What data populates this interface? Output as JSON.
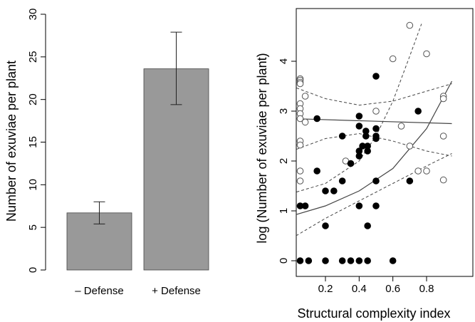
{
  "chart_data": [
    {
      "type": "bar",
      "categories": [
        "– Defense",
        "+ Defense"
      ],
      "values": [
        6.7,
        23.6
      ],
      "error_bars": [
        [
          5.4,
          8.0
        ],
        [
          19.4,
          27.9
        ]
      ],
      "title": "",
      "xlabel": "",
      "ylabel": "Number of exuviae per plant",
      "ylim": [
        0,
        30
      ],
      "yticks": [
        0,
        5,
        10,
        15,
        20,
        25,
        30
      ],
      "bar_color": "#999999",
      "grid": false
    },
    {
      "type": "scatter",
      "title": "",
      "xlabel": "Structural complexity index",
      "ylabel": "log (Number of exuviae per plant)",
      "xlim": [
        0.0,
        0.95
      ],
      "ylim": [
        0,
        4.75
      ],
      "xticks": [
        0.2,
        0.4,
        0.6,
        0.8
      ],
      "xtick_labels": [
        "0.2",
        "0.4",
        "0.6",
        "0.8"
      ],
      "yticks": [
        0,
        1,
        2,
        3,
        4
      ],
      "grid": false,
      "series": [
        {
          "marker": "open-circle",
          "points": [
            [
              0.05,
              3.65
            ],
            [
              0.05,
              3.62
            ],
            [
              0.05,
              3.58
            ],
            [
              0.05,
              3.55
            ],
            [
              0.05,
              3.15
            ],
            [
              0.05,
              3.05
            ],
            [
              0.05,
              2.95
            ],
            [
              0.05,
              2.85
            ],
            [
              0.05,
              2.4
            ],
            [
              0.05,
              2.32
            ],
            [
              0.05,
              1.8
            ],
            [
              0.05,
              1.6
            ],
            [
              0.08,
              3.3
            ],
            [
              0.08,
              2.78
            ],
            [
              0.32,
              2.0
            ],
            [
              0.5,
              3.0
            ],
            [
              0.6,
              4.05
            ],
            [
              0.65,
              2.7
            ],
            [
              0.7,
              4.72
            ],
            [
              0.7,
              2.3
            ],
            [
              0.75,
              1.8
            ],
            [
              0.8,
              4.15
            ],
            [
              0.8,
              1.8
            ],
            [
              0.9,
              3.3
            ],
            [
              0.9,
              3.25
            ],
            [
              0.9,
              2.5
            ],
            [
              0.9,
              1.62
            ]
          ]
        },
        {
          "marker": "filled-circle",
          "points": [
            [
              0.05,
              1.1
            ],
            [
              0.05,
              0.0
            ],
            [
              0.08,
              1.1
            ],
            [
              0.1,
              0.0
            ],
            [
              0.15,
              2.85
            ],
            [
              0.15,
              1.8
            ],
            [
              0.2,
              1.4
            ],
            [
              0.2,
              0.7
            ],
            [
              0.2,
              0.0
            ],
            [
              0.25,
              1.4
            ],
            [
              0.3,
              2.5
            ],
            [
              0.3,
              1.6
            ],
            [
              0.3,
              0.0
            ],
            [
              0.35,
              1.95
            ],
            [
              0.35,
              0.0
            ],
            [
              0.4,
              2.9
            ],
            [
              0.4,
              2.7
            ],
            [
              0.4,
              2.2
            ],
            [
              0.4,
              2.1
            ],
            [
              0.4,
              1.1
            ],
            [
              0.4,
              0.0
            ],
            [
              0.42,
              2.3
            ],
            [
              0.44,
              2.6
            ],
            [
              0.44,
              2.5
            ],
            [
              0.45,
              2.3
            ],
            [
              0.45,
              2.2
            ],
            [
              0.45,
              0.7
            ],
            [
              0.45,
              0.0
            ],
            [
              0.5,
              3.7
            ],
            [
              0.5,
              2.65
            ],
            [
              0.5,
              2.5
            ],
            [
              0.5,
              2.45
            ],
            [
              0.5,
              1.6
            ],
            [
              0.5,
              1.1
            ],
            [
              0.6,
              0.0
            ],
            [
              0.7,
              1.6
            ],
            [
              0.75,
              3.0
            ]
          ]
        }
      ],
      "fits": [
        {
          "group": "open-circle",
          "line": [
            [
              0.0,
              2.85
            ],
            [
              0.95,
              2.75
            ]
          ],
          "ci_upper": [
            [
              0.0,
              3.5
            ],
            [
              0.2,
              3.25
            ],
            [
              0.4,
              3.12
            ],
            [
              0.6,
              3.2
            ],
            [
              0.8,
              3.4
            ],
            [
              0.95,
              3.55
            ]
          ],
          "ci_lower": [
            [
              0.0,
              2.2
            ],
            [
              0.2,
              2.45
            ],
            [
              0.4,
              2.55
            ],
            [
              0.6,
              2.4
            ],
            [
              0.8,
              2.2
            ],
            [
              0.95,
              2.1
            ]
          ]
        },
        {
          "group": "filled-circle",
          "line": [
            [
              0.0,
              0.9
            ],
            [
              0.2,
              1.1
            ],
            [
              0.4,
              1.4
            ],
            [
              0.6,
              1.85
            ],
            [
              0.8,
              2.65
            ],
            [
              0.95,
              3.6
            ]
          ],
          "ci_upper": [
            [
              0.0,
              1.35
            ],
            [
              0.2,
              1.55
            ],
            [
              0.4,
              2.0
            ],
            [
              0.5,
              2.5
            ],
            [
              0.6,
              3.2
            ],
            [
              0.7,
              4.1
            ],
            [
              0.77,
              4.75
            ]
          ],
          "ci_lower": [
            [
              0.0,
              0.45
            ],
            [
              0.2,
              0.85
            ],
            [
              0.4,
              1.2
            ],
            [
              0.6,
              1.55
            ],
            [
              0.8,
              1.9
            ],
            [
              0.95,
              2.15
            ]
          ]
        }
      ]
    }
  ]
}
